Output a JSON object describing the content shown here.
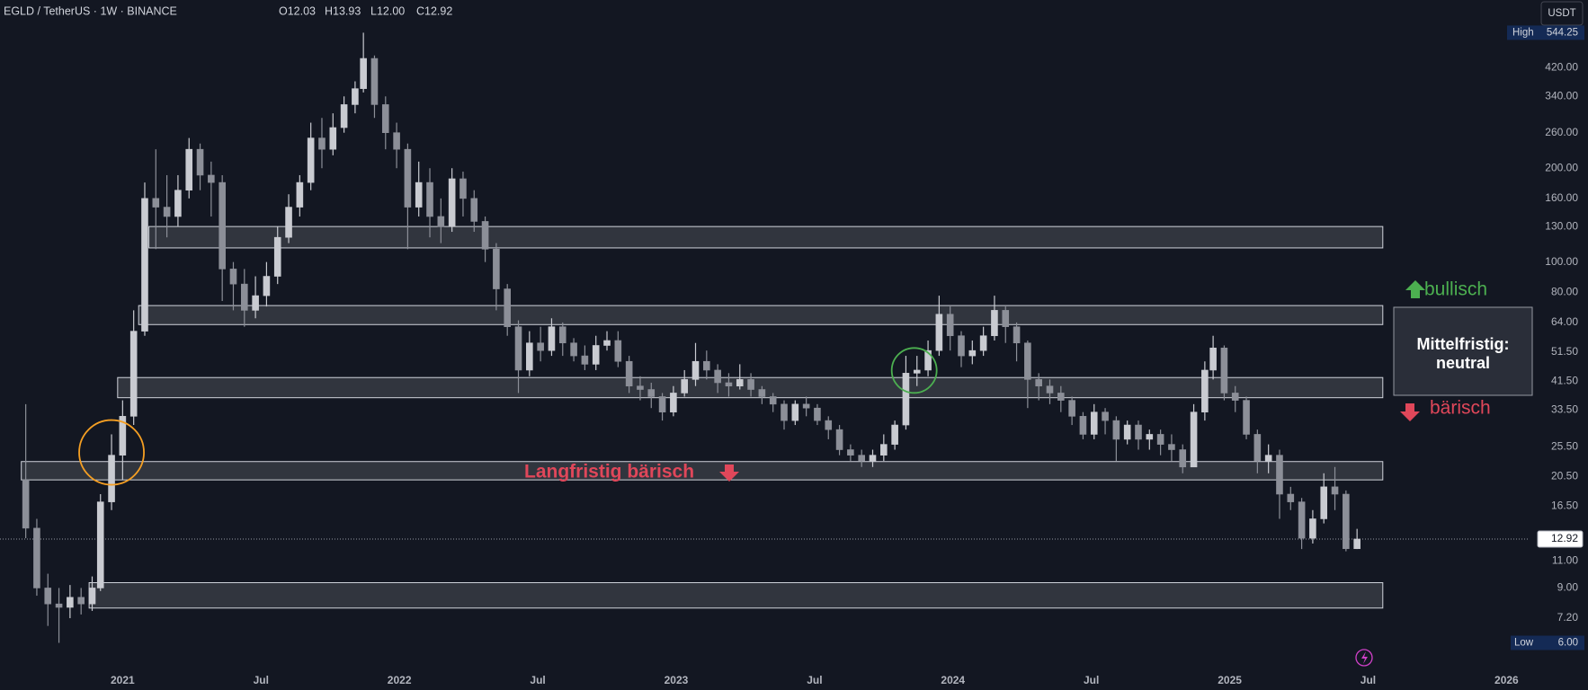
{
  "chart_data": {
    "type": "candlestick",
    "title": "EGLD / TetherUS · 1W · BINANCE",
    "ohlc_labels": [
      "O12.03",
      "H13.93",
      "L12.00",
      "C12.92"
    ],
    "currency": "USDT",
    "log_scale": true,
    "grid": false,
    "up_color": "#c9cbd1",
    "down_color": "#8c8f98",
    "xlim": [
      2020.557,
      2026.08
    ],
    "xticks": [
      {
        "value": 2021,
        "label": "2021"
      },
      {
        "value": 2021.5,
        "label": "Jul"
      },
      {
        "value": 2022,
        "label": "2022"
      },
      {
        "value": 2022.5,
        "label": "Jul"
      },
      {
        "value": 2023,
        "label": "2023"
      },
      {
        "value": 2023.5,
        "label": "Jul"
      },
      {
        "value": 2024,
        "label": "2024"
      },
      {
        "value": 2024.5,
        "label": "Jul"
      },
      {
        "value": 2025,
        "label": "2025"
      },
      {
        "value": 2025.5,
        "label": "Jul"
      },
      {
        "value": 2026,
        "label": "2026"
      }
    ],
    "ylim": [
      5.0,
      693
    ],
    "yticks": [
      {
        "value": 7.2,
        "label": "7.20"
      },
      {
        "value": 9,
        "label": "9.00"
      },
      {
        "value": 11,
        "label": "11.00"
      },
      {
        "value": 16.5,
        "label": "16.50"
      },
      {
        "value": 20.5,
        "label": "20.50"
      },
      {
        "value": 25.5,
        "label": "25.50"
      },
      {
        "value": 33.5,
        "label": "33.50"
      },
      {
        "value": 41.5,
        "label": "41.50"
      },
      {
        "value": 51.5,
        "label": "51.50"
      },
      {
        "value": 64,
        "label": "64.00"
      },
      {
        "value": 80,
        "label": "80.00"
      },
      {
        "value": 100,
        "label": "100.00"
      },
      {
        "value": 130,
        "label": "130.00"
      },
      {
        "value": 160,
        "label": "160.00"
      },
      {
        "value": 200,
        "label": "200.00"
      },
      {
        "value": 260,
        "label": "260.00"
      },
      {
        "value": 340,
        "label": "340.00"
      },
      {
        "value": 420,
        "label": "420.00"
      }
    ],
    "x": [
      2020.65,
      2020.69,
      2020.73,
      2020.77,
      2020.81,
      2020.85,
      2020.89,
      2020.92,
      2020.96,
      2021.0,
      2021.04,
      2021.08,
      2021.12,
      2021.16,
      2021.2,
      2021.24,
      2021.28,
      2021.32,
      2021.36,
      2021.4,
      2021.44,
      2021.48,
      2021.52,
      2021.56,
      2021.6,
      2021.64,
      2021.68,
      2021.72,
      2021.76,
      2021.8,
      2021.84,
      2021.87,
      2021.91,
      2021.95,
      2021.99,
      2022.03,
      2022.07,
      2022.11,
      2022.15,
      2022.19,
      2022.23,
      2022.27,
      2022.31,
      2022.35,
      2022.39,
      2022.43,
      2022.47,
      2022.51,
      2022.55,
      2022.59,
      2022.63,
      2022.67,
      2022.71,
      2022.75,
      2022.79,
      2022.83,
      2022.87,
      2022.91,
      2022.95,
      2022.99,
      2023.03,
      2023.07,
      2023.11,
      2023.15,
      2023.19,
      2023.23,
      2023.27,
      2023.31,
      2023.35,
      2023.39,
      2023.43,
      2023.47,
      2023.51,
      2023.55,
      2023.59,
      2023.63,
      2023.67,
      2023.71,
      2023.75,
      2023.79,
      2023.83,
      2023.87,
      2023.91,
      2023.95,
      2023.99,
      2024.03,
      2024.07,
      2024.11,
      2024.15,
      2024.19,
      2024.23,
      2024.27,
      2024.31,
      2024.35,
      2024.39,
      2024.43,
      2024.47,
      2024.51,
      2024.55,
      2024.59,
      2024.63,
      2024.67,
      2024.71,
      2024.75,
      2024.79,
      2024.83,
      2024.87,
      2024.91,
      2024.94,
      2024.98,
      2025.02,
      2025.06,
      2025.1,
      2025.14,
      2025.18,
      2025.22,
      2025.26,
      2025.3,
      2025.34,
      2025.38,
      2025.42,
      2025.46
    ],
    "open": [
      20,
      14,
      9,
      8,
      7.8,
      8.4,
      8,
      9,
      17,
      24,
      32,
      60,
      160,
      150,
      140,
      170,
      230,
      190,
      180,
      95,
      85,
      70,
      78,
      90,
      120,
      150,
      180,
      250,
      230,
      270,
      320,
      360,
      450,
      320,
      260,
      230,
      150,
      180,
      140,
      130,
      185,
      160,
      135,
      110,
      82,
      62,
      45,
      55,
      52,
      62,
      55,
      50,
      47,
      54,
      56,
      48,
      40,
      39,
      37,
      33,
      38,
      42,
      48,
      45,
      41,
      40,
      42,
      39,
      37,
      35,
      31,
      35,
      34,
      31,
      29,
      25,
      24,
      23,
      24,
      26,
      30,
      44,
      45,
      52,
      68,
      58,
      50,
      52,
      58,
      70,
      62,
      55,
      42,
      40,
      38,
      36,
      32,
      28,
      33,
      31,
      27,
      30,
      27,
      28,
      26,
      25,
      22,
      33,
      45,
      53,
      38,
      36,
      28,
      23,
      24,
      18,
      17,
      13,
      15,
      19,
      18,
      12.03
    ],
    "high": [
      35,
      15,
      10,
      9,
      9.2,
      9,
      9.8,
      18,
      28,
      36,
      70,
      180,
      230,
      190,
      190,
      250,
      240,
      210,
      190,
      100,
      95,
      90,
      100,
      130,
      165,
      190,
      280,
      290,
      300,
      340,
      380,
      544.25,
      460,
      340,
      280,
      240,
      210,
      200,
      160,
      200,
      195,
      170,
      140,
      115,
      85,
      65,
      60,
      62,
      66,
      64,
      57,
      54,
      58,
      60,
      60,
      50,
      43,
      41,
      38,
      40,
      45,
      55,
      52,
      47,
      44,
      47,
      44,
      40,
      38,
      36,
      36,
      37,
      35,
      32,
      30,
      26,
      25,
      25,
      28,
      31,
      50,
      50,
      56,
      78,
      72,
      60,
      56,
      62,
      78,
      72,
      64,
      56,
      44,
      42,
      40,
      37,
      33,
      35,
      34,
      32,
      31,
      31,
      29,
      29,
      28,
      26,
      35,
      48,
      58,
      54,
      40,
      37,
      29,
      26,
      25,
      19,
      17.5,
      16,
      21,
      22,
      18.5,
      13.93
    ],
    "low": [
      13,
      8.5,
      6.8,
      6,
      7.2,
      7.4,
      7.6,
      8.8,
      16,
      20,
      30,
      58,
      110,
      120,
      130,
      160,
      170,
      140,
      75,
      70,
      62,
      66,
      72,
      85,
      115,
      140,
      170,
      200,
      220,
      260,
      300,
      350,
      290,
      230,
      200,
      110,
      140,
      120,
      115,
      125,
      140,
      125,
      100,
      70,
      58,
      38,
      43,
      48,
      50,
      50,
      48,
      45,
      45,
      52,
      46,
      38,
      36,
      34,
      31,
      32,
      37,
      40,
      42,
      38,
      37,
      39,
      37,
      35,
      33,
      29,
      30,
      32,
      30,
      27,
      24,
      23,
      22,
      22,
      23,
      25,
      29,
      40,
      43,
      50,
      52,
      46,
      47,
      50,
      56,
      55,
      48,
      34,
      36,
      35,
      33,
      30,
      27,
      27,
      28,
      23,
      26,
      25,
      25,
      24,
      23,
      21,
      22,
      31,
      42,
      36,
      33,
      27,
      21,
      21,
      15,
      16,
      12,
      12.5,
      14.5,
      16,
      11.8,
      12
    ],
    "close": [
      14,
      9,
      8,
      7.8,
      8.4,
      8,
      9,
      17,
      24,
      32,
      60,
      160,
      150,
      140,
      170,
      230,
      190,
      180,
      95,
      85,
      70,
      78,
      90,
      120,
      150,
      180,
      250,
      230,
      270,
      320,
      360,
      450,
      320,
      260,
      230,
      150,
      180,
      140,
      130,
      185,
      160,
      135,
      110,
      82,
      62,
      45,
      55,
      52,
      62,
      55,
      50,
      47,
      54,
      56,
      48,
      40,
      39,
      37,
      33,
      38,
      42,
      48,
      45,
      41,
      40,
      42,
      39,
      37,
      35,
      31,
      35,
      34,
      31,
      29,
      25,
      24,
      23,
      24,
      26,
      30,
      44,
      45,
      52,
      68,
      58,
      50,
      52,
      58,
      70,
      62,
      55,
      42,
      40,
      38,
      36,
      32,
      28,
      33,
      31,
      27,
      30,
      27,
      28,
      26,
      25,
      22,
      33,
      45,
      53,
      38,
      36,
      28,
      23,
      24,
      18,
      17,
      13,
      15,
      19,
      18,
      12.03,
      12.92
    ],
    "high_text": "High",
    "low_text": "Low",
    "low_marker": {
      "value": 6,
      "label": "6.00"
    },
    "zones": [
      {
        "xlim": [
          2021.095,
          2025.553
        ],
        "ylim": [
          111,
          130
        ]
      },
      {
        "xlim": [
          2021.058,
          2025.553
        ],
        "ylim": [
          63,
          72.5
        ]
      },
      {
        "xlim": [
          2020.982,
          2025.553
        ],
        "ylim": [
          36.7,
          42.6
        ]
      },
      {
        "xlim": [
          2020.634,
          2025.553
        ],
        "ylim": [
          20.0,
          22.9
        ]
      },
      {
        "xlim": [
          2020.879,
          2025.553
        ],
        "ylim": [
          7.76,
          9.36
        ]
      }
    ],
    "highlights": [
      {
        "x": 2020.96,
        "y": 24.5,
        "color": "#f59f23"
      },
      {
        "x": 2023.86,
        "y": 44.9,
        "color": "#4caf50"
      }
    ],
    "annotations": {
      "long_term": "Langfristig bärisch",
      "bullish": "bullisch",
      "bearish": "bärisch",
      "mid_term_title": "Mittelfristig:",
      "mid_term_value": "neutral"
    }
  }
}
